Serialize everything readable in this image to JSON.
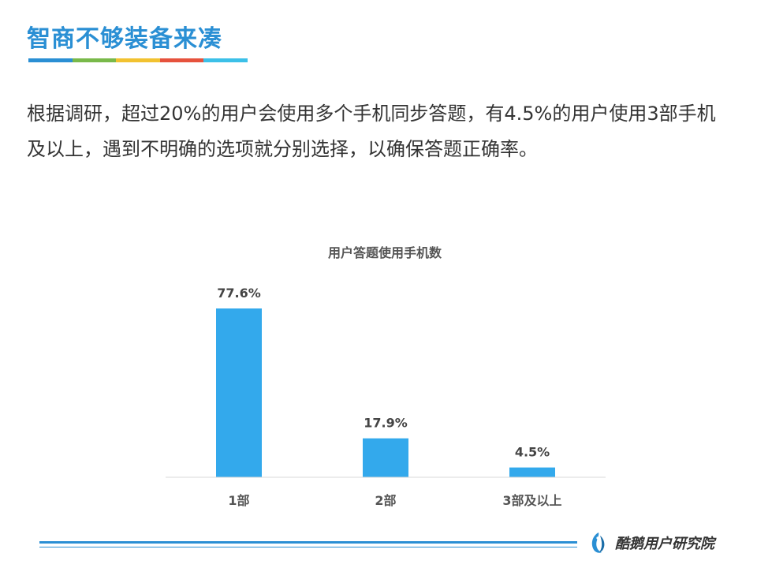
{
  "slide": {
    "title": "智商不够装备来凑",
    "underline_colors": [
      "#2a8fd4",
      "#79b94a",
      "#f2c230",
      "#e6523d",
      "#3cc0e8"
    ],
    "body": "根据调研，超过20%的用户会使用多个手机同步答题，有4.5%的用户使用3部手机及以上，遇到不明确的选项就分别选择，以确保答题正确率。"
  },
  "chart_data": {
    "type": "bar",
    "title": "用户答题使用手机数",
    "categories": [
      "1部",
      "2部",
      "3部及以上"
    ],
    "values": [
      77.6,
      17.9,
      4.5
    ],
    "value_labels": [
      "77.6%",
      "17.9%",
      "4.5%"
    ],
    "ylim": [
      0,
      80
    ],
    "unit": "%",
    "bar_color": "#33a9ec",
    "grid": false,
    "legend": "none"
  },
  "footer": {
    "brand": "酷鹅用户研究院",
    "accent_color": "#2a8fd4"
  }
}
